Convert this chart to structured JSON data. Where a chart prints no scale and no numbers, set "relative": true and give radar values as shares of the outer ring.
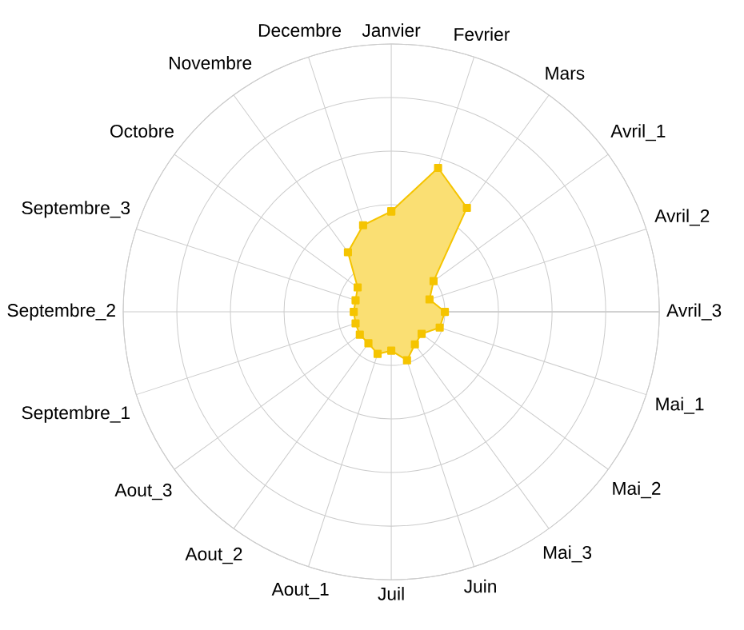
{
  "chart_data": {
    "type": "radar",
    "relative": true,
    "grid": true,
    "marker": "square",
    "categories": [
      "Janvier",
      "Fevrier",
      "Mars",
      "Avril_1",
      "Avril_2",
      "Avril_3",
      "Mai_1",
      "Mai_2",
      "Mai_3",
      "Juin",
      "Juil",
      "Aout_1",
      "Aout_2",
      "Aout_3",
      "Septembre_1",
      "Septembre_2",
      "Septembre_3",
      "Octobre",
      "Novembre",
      "Decembre"
    ],
    "series": [
      {
        "color": "#f5c400",
        "values": [
          0.375,
          0.565,
          0.48,
          0.195,
          0.15,
          0.2,
          0.19,
          0.14,
          0.15,
          0.19,
          0.145,
          0.165,
          0.145,
          0.145,
          0.14,
          0.14,
          0.14,
          0.155,
          0.275,
          0.34
        ]
      }
    ]
  }
}
